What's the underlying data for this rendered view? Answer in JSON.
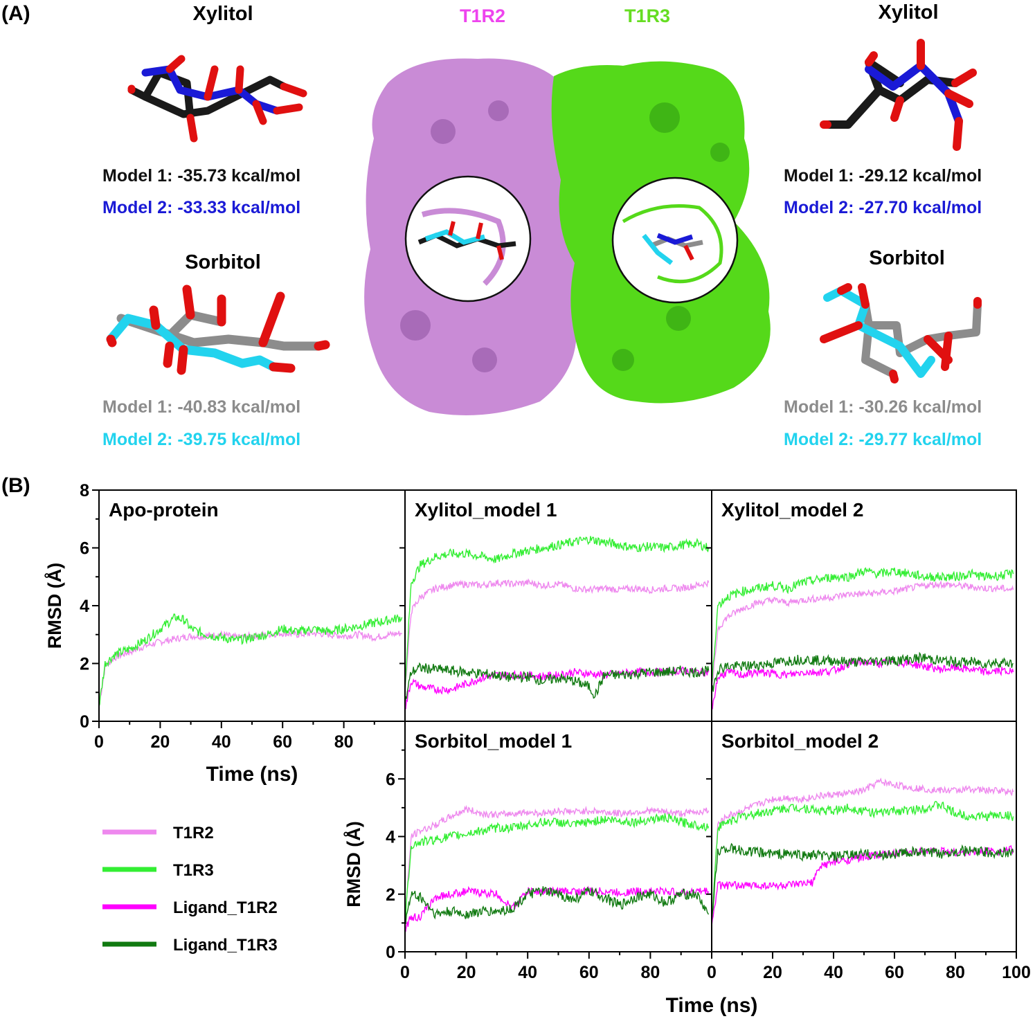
{
  "panel_a": {
    "tag": "(A)",
    "left": {
      "xylitol": {
        "name": "Xylitol",
        "model1": "Model 1: -35.73 kcal/mol",
        "model2": "Model 2: -33.33 kcal/mol"
      },
      "sorbitol": {
        "name": "Sorbitol",
        "model1": "Model 1: -40.83 kcal/mol",
        "model2": "Model 2: -39.75 kcal/mol"
      }
    },
    "right": {
      "xylitol": {
        "name": "Xylitol",
        "model1": "Model 1: -29.12 kcal/mol",
        "model2": "Model 2: -27.70 kcal/mol"
      },
      "sorbitol": {
        "name": "Sorbitol",
        "model1": "Model 1: -30.26 kcal/mol",
        "model2": "Model 2: -29.77 kcal/mol"
      }
    },
    "chain_t1r2": "T1R2",
    "chain_t1r3": "T1R3",
    "colors": {
      "xylitol_model1": "#1a1a1a",
      "xylitol_model2": "#1a1ad6",
      "sorbitol_model1": "#8c8c8c",
      "sorbitol_model2": "#22d3ee",
      "oxygen": "#e01010",
      "t1r2_surface": "#c98bd6",
      "t1r3_surface": "#55d91a",
      "t1r2_label": "#ee44ee",
      "t1r3_label": "#66dd22"
    }
  },
  "panel_b": {
    "tag": "(B)"
  },
  "chart_data": {
    "type": "line",
    "xlabel": "Time (ns)",
    "ylabel": "RMSD (Å)",
    "xlim": [
      0,
      100
    ],
    "ylim": [
      0,
      8
    ],
    "grid": false,
    "legend_position": "bottom-left",
    "x_ticks": [
      0,
      20,
      40,
      60,
      80,
      100
    ],
    "y_ticks": [
      0,
      2,
      4,
      6,
      8
    ],
    "series_styles": [
      {
        "name": "T1R2",
        "color": "#ee88ee"
      },
      {
        "name": "T1R3",
        "color": "#33ee33"
      },
      {
        "name": "Ligand_T1R2",
        "color": "#ff00ff"
      },
      {
        "name": "Ligand_T1R3",
        "color": "#117a11"
      }
    ],
    "panels": [
      {
        "title": "Apo-protein",
        "series": [
          {
            "name": "T1R2",
            "x": [
              0,
              2,
              5,
              10,
              15,
              20,
              25,
              30,
              35,
              40,
              45,
              50,
              55,
              60,
              65,
              70,
              75,
              80,
              85,
              90,
              95,
              99
            ],
            "values": [
              0.5,
              1.9,
              2.2,
              2.4,
              2.6,
              2.75,
              2.85,
              2.95,
              2.95,
              3.0,
              2.9,
              2.95,
              3.0,
              3.05,
              3.0,
              3.05,
              3.0,
              2.95,
              3.0,
              2.9,
              3.0,
              3.05
            ]
          },
          {
            "name": "T1R3",
            "x": [
              0,
              2,
              5,
              10,
              15,
              20,
              25,
              28,
              30,
              35,
              40,
              45,
              50,
              55,
              60,
              65,
              70,
              75,
              80,
              85,
              90,
              95,
              99
            ],
            "values": [
              0.5,
              2.0,
              2.3,
              2.5,
              2.8,
              3.2,
              3.6,
              3.5,
              3.2,
              3.0,
              2.9,
              2.8,
              2.9,
              3.0,
              3.2,
              3.1,
              3.2,
              3.1,
              3.2,
              3.3,
              3.4,
              3.5,
              3.6
            ]
          }
        ]
      },
      {
        "title": "Xylitol_model 1",
        "series": [
          {
            "name": "T1R2",
            "x": [
              0,
              2,
              5,
              10,
              15,
              20,
              25,
              30,
              35,
              40,
              45,
              50,
              55,
              60,
              65,
              70,
              75,
              80,
              85,
              90,
              95,
              99
            ],
            "values": [
              1.0,
              3.8,
              4.3,
              4.6,
              4.7,
              4.75,
              4.7,
              4.8,
              4.75,
              4.8,
              4.7,
              4.75,
              4.6,
              4.55,
              4.6,
              4.55,
              4.6,
              4.55,
              4.6,
              4.6,
              4.7,
              4.8
            ]
          },
          {
            "name": "T1R3",
            "x": [
              0,
              2,
              5,
              10,
              15,
              20,
              25,
              30,
              35,
              40,
              45,
              50,
              55,
              60,
              65,
              70,
              75,
              80,
              85,
              90,
              95,
              99
            ],
            "values": [
              1.0,
              4.8,
              5.4,
              5.7,
              5.8,
              5.8,
              5.7,
              5.6,
              5.8,
              5.9,
              6.0,
              6.1,
              6.2,
              6.3,
              6.2,
              6.1,
              6.0,
              6.05,
              6.0,
              6.1,
              6.15,
              6.0
            ]
          },
          {
            "name": "Ligand_T1R2",
            "x": [
              0,
              2,
              5,
              10,
              15,
              20,
              25,
              30,
              35,
              40,
              45,
              50,
              55,
              60,
              65,
              70,
              75,
              80,
              85,
              90,
              95,
              99
            ],
            "values": [
              0.4,
              1.4,
              1.2,
              1.1,
              1.1,
              1.3,
              1.5,
              1.6,
              1.6,
              1.6,
              1.55,
              1.6,
              1.7,
              1.65,
              1.6,
              1.65,
              1.7,
              1.7,
              1.7,
              1.75,
              1.7,
              1.7
            ]
          },
          {
            "name": "Ligand_T1R3",
            "x": [
              0,
              2,
              5,
              10,
              15,
              20,
              25,
              30,
              35,
              40,
              45,
              50,
              55,
              60,
              62,
              65,
              70,
              75,
              80,
              85,
              90,
              95,
              99
            ],
            "values": [
              0.6,
              1.7,
              1.85,
              1.8,
              1.75,
              1.7,
              1.65,
              1.6,
              1.5,
              1.55,
              1.4,
              1.5,
              1.4,
              1.2,
              0.9,
              1.6,
              1.6,
              1.65,
              1.7,
              1.7,
              1.75,
              1.7,
              1.75
            ]
          }
        ]
      },
      {
        "title": "Xylitol_model 2",
        "series": [
          {
            "name": "T1R2",
            "x": [
              0,
              2,
              5,
              10,
              15,
              20,
              25,
              30,
              35,
              40,
              45,
              50,
              55,
              60,
              65,
              70,
              75,
              80,
              85,
              90,
              95,
              99
            ],
            "values": [
              1.0,
              3.2,
              3.6,
              3.9,
              4.1,
              4.2,
              4.1,
              4.2,
              4.25,
              4.3,
              4.4,
              4.4,
              4.45,
              4.5,
              4.6,
              4.7,
              4.75,
              4.7,
              4.65,
              4.6,
              4.6,
              4.55
            ]
          },
          {
            "name": "T1R3",
            "x": [
              0,
              2,
              5,
              10,
              15,
              20,
              25,
              30,
              35,
              40,
              45,
              50,
              55,
              60,
              65,
              70,
              75,
              80,
              85,
              90,
              95,
              99
            ],
            "values": [
              1.2,
              4.0,
              4.3,
              4.5,
              4.6,
              4.7,
              4.6,
              4.8,
              4.9,
              5.0,
              5.0,
              5.2,
              5.1,
              5.2,
              5.1,
              5.0,
              5.0,
              5.0,
              5.1,
              5.0,
              5.05,
              5.1
            ]
          },
          {
            "name": "Ligand_T1R2",
            "x": [
              0,
              2,
              5,
              10,
              15,
              20,
              25,
              30,
              35,
              40,
              45,
              50,
              55,
              60,
              65,
              70,
              75,
              80,
              85,
              90,
              95,
              99
            ],
            "values": [
              0.4,
              1.5,
              1.7,
              1.6,
              1.7,
              1.65,
              1.6,
              1.7,
              1.7,
              1.75,
              2.0,
              2.05,
              2.0,
              2.05,
              2.0,
              1.9,
              1.8,
              1.85,
              1.8,
              1.7,
              1.75,
              1.7
            ]
          },
          {
            "name": "Ligand_T1R3",
            "x": [
              0,
              2,
              5,
              10,
              15,
              20,
              25,
              30,
              35,
              40,
              45,
              50,
              55,
              60,
              65,
              70,
              75,
              80,
              85,
              90,
              95,
              99
            ],
            "values": [
              1.0,
              1.8,
              1.9,
              1.9,
              1.95,
              2.0,
              2.1,
              2.15,
              2.1,
              2.1,
              2.05,
              2.05,
              2.1,
              2.1,
              2.15,
              2.2,
              2.1,
              2.05,
              2.05,
              2.0,
              2.05,
              2.0
            ]
          }
        ]
      },
      {
        "title": "Sorbitol_model 1",
        "series": [
          {
            "name": "T1R2",
            "x": [
              0,
              2,
              5,
              10,
              15,
              20,
              25,
              30,
              35,
              40,
              45,
              50,
              55,
              60,
              65,
              70,
              75,
              80,
              85,
              90,
              95,
              99
            ],
            "values": [
              1.0,
              4.0,
              4.2,
              4.4,
              4.7,
              4.95,
              4.8,
              4.75,
              4.8,
              4.85,
              4.8,
              4.9,
              4.85,
              4.9,
              4.85,
              4.8,
              4.85,
              4.9,
              4.85,
              4.8,
              4.85,
              4.9
            ]
          },
          {
            "name": "T1R3",
            "x": [
              0,
              2,
              5,
              10,
              15,
              20,
              25,
              30,
              35,
              40,
              45,
              50,
              55,
              60,
              65,
              70,
              75,
              80,
              85,
              90,
              95,
              99
            ],
            "values": [
              1.0,
              3.7,
              3.8,
              3.9,
              4.0,
              4.1,
              4.2,
              4.3,
              4.3,
              4.4,
              4.5,
              4.5,
              4.4,
              4.5,
              4.6,
              4.55,
              4.5,
              4.6,
              4.65,
              4.5,
              4.4,
              4.35
            ]
          },
          {
            "name": "Ligand_T1R2",
            "x": [
              0,
              2,
              5,
              10,
              15,
              20,
              25,
              30,
              35,
              40,
              45,
              50,
              55,
              60,
              65,
              70,
              75,
              80,
              85,
              90,
              95,
              99
            ],
            "values": [
              0.8,
              1.2,
              1.2,
              1.9,
              2.0,
              2.1,
              2.05,
              2.0,
              1.5,
              2.1,
              2.1,
              2.1,
              2.1,
              2.1,
              2.1,
              2.05,
              2.1,
              2.1,
              2.1,
              2.05,
              2.1,
              2.1
            ]
          },
          {
            "name": "Ligand_T1R3",
            "x": [
              0,
              2,
              5,
              10,
              15,
              20,
              25,
              30,
              35,
              40,
              45,
              50,
              55,
              60,
              65,
              70,
              75,
              80,
              85,
              90,
              95,
              99
            ],
            "values": [
              1.0,
              2.0,
              1.9,
              1.3,
              1.4,
              1.3,
              1.4,
              1.4,
              1.5,
              2.0,
              2.1,
              2.0,
              1.8,
              2.1,
              1.9,
              1.6,
              1.9,
              2.0,
              1.7,
              2.0,
              2.0,
              1.3
            ]
          }
        ]
      },
      {
        "title": "Sorbitol_model 2",
        "series": [
          {
            "name": "T1R2",
            "x": [
              0,
              2,
              5,
              10,
              15,
              20,
              25,
              30,
              35,
              40,
              45,
              50,
              55,
              60,
              65,
              70,
              75,
              80,
              85,
              90,
              95,
              99
            ],
            "values": [
              1.0,
              4.4,
              4.7,
              4.9,
              5.1,
              5.3,
              5.35,
              5.3,
              5.4,
              5.45,
              5.5,
              5.6,
              5.9,
              5.8,
              5.7,
              5.65,
              5.6,
              5.6,
              5.65,
              5.6,
              5.6,
              5.55
            ]
          },
          {
            "name": "T1R3",
            "x": [
              0,
              2,
              5,
              10,
              15,
              20,
              25,
              30,
              35,
              40,
              45,
              50,
              55,
              60,
              65,
              70,
              75,
              80,
              85,
              90,
              95,
              99
            ],
            "values": [
              1.0,
              4.3,
              4.5,
              4.7,
              4.8,
              4.9,
              5.0,
              5.0,
              4.9,
              4.9,
              5.0,
              4.9,
              4.8,
              4.9,
              4.9,
              5.0,
              5.1,
              4.8,
              4.7,
              4.7,
              4.75,
              4.7
            ]
          },
          {
            "name": "Ligand_T1R2",
            "x": [
              0,
              2,
              5,
              10,
              15,
              20,
              25,
              30,
              33,
              36,
              40,
              45,
              50,
              55,
              60,
              65,
              70,
              75,
              80,
              85,
              90,
              95,
              99
            ],
            "values": [
              0.9,
              2.3,
              2.3,
              2.3,
              2.3,
              2.3,
              2.3,
              2.35,
              2.4,
              3.0,
              3.1,
              3.2,
              3.3,
              3.35,
              3.4,
              3.45,
              3.5,
              3.5,
              3.45,
              3.45,
              3.5,
              3.5,
              3.55
            ]
          },
          {
            "name": "Ligand_T1R3",
            "x": [
              0,
              2,
              5,
              10,
              15,
              20,
              25,
              30,
              35,
              40,
              45,
              50,
              55,
              60,
              65,
              70,
              75,
              80,
              85,
              90,
              95,
              99
            ],
            "values": [
              1.0,
              3.5,
              3.6,
              3.5,
              3.45,
              3.4,
              3.4,
              3.35,
              3.35,
              3.3,
              3.35,
              3.4,
              3.35,
              3.4,
              3.45,
              3.45,
              3.4,
              3.5,
              3.5,
              3.45,
              3.45,
              3.45
            ]
          }
        ]
      }
    ]
  }
}
